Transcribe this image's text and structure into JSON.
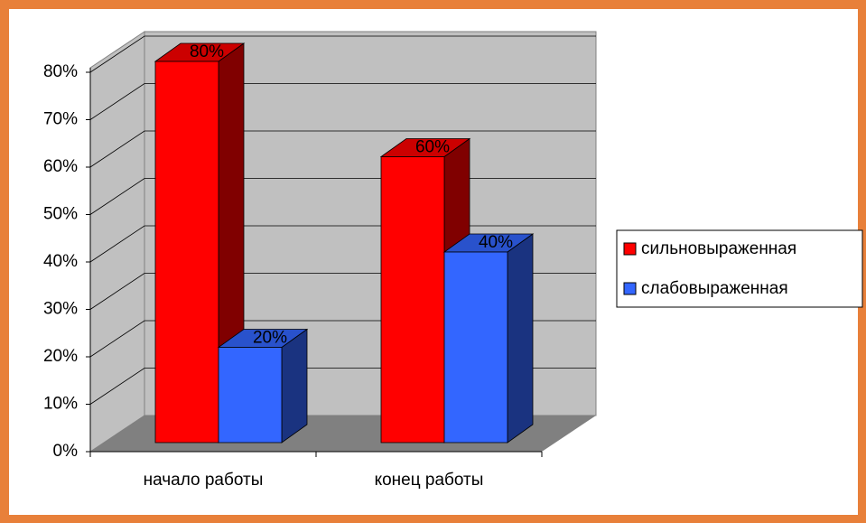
{
  "chart_data": {
    "type": "bar3d",
    "categories": [
      "начало работы",
      "конец работы"
    ],
    "series": [
      {
        "name": "сильновыраженная",
        "color": "#FF0000",
        "values": [
          80,
          60
        ],
        "value_labels": [
          "80%",
          "60%"
        ]
      },
      {
        "name": "слабовыраженная",
        "color": "#3366FF",
        "values": [
          20,
          40
        ],
        "value_labels": [
          "20%",
          "40%"
        ]
      }
    ],
    "ylim": [
      0,
      80
    ],
    "yticks": [
      {
        "value": 0,
        "label": "0%"
      },
      {
        "value": 10,
        "label": "10%"
      },
      {
        "value": 20,
        "label": "20%"
      },
      {
        "value": 30,
        "label": "30%"
      },
      {
        "value": 40,
        "label": "40%"
      },
      {
        "value": 50,
        "label": "50%"
      },
      {
        "value": 60,
        "label": "60%"
      },
      {
        "value": 70,
        "label": "70%"
      },
      {
        "value": 80,
        "label": "80%"
      }
    ],
    "grid": true,
    "legend": "right"
  }
}
